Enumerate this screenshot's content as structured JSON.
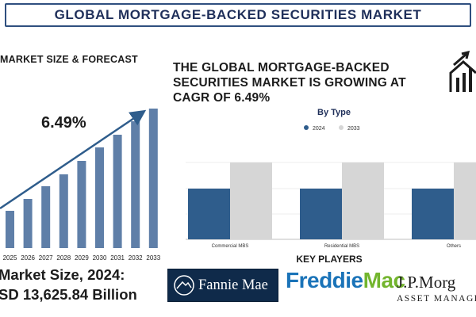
{
  "header": {
    "title": "GLOBAL MORTGAGE-BACKED SECURITIES MARKET"
  },
  "left_panel": {
    "title": "MARKET SIZE & FORECAST",
    "cagr_label": "6.49%",
    "market_size_line1": "Market Size, 2024:",
    "market_size_line2": "SD 13,625.84 Billion"
  },
  "right_panel": {
    "headline": "THE GLOBAL MORTGAGE-BACKED SECURITIES MARKET IS GROWING AT CAGR OF 6.49%",
    "chart_title": "By Type",
    "icon": "house-growth-icon"
  },
  "key_players": {
    "title": "KEY PLAYERS",
    "fannie_mae": "Fannie Mae",
    "freddie_mac_1": "Freddie",
    "freddie_mac_2": "Mac",
    "jpmorgan_1": "J.P.Morg",
    "jpmorgan_2": "ASSET MANAGE"
  },
  "colors": {
    "primary_blue": "#2f5d8c",
    "left_bar": "#5f7fa8",
    "light_gray": "#d6d6d6",
    "title_navy": "#1f2f5a",
    "freddie_blue": "#1a73b8",
    "freddie_green": "#73b52e"
  },
  "chart_data": [
    {
      "type": "bar",
      "categories": [
        "2025",
        "2026",
        "2027",
        "2028",
        "2029",
        "2030",
        "2031",
        "2032",
        "2033"
      ],
      "values": [
        47,
        62,
        78,
        93,
        110,
        127,
        143,
        160,
        176
      ],
      "ylim": [
        0,
        185
      ],
      "annotations": [
        "6.49%"
      ]
    },
    {
      "type": "bar",
      "title": "By Type",
      "categories": [
        "Commercial MBS",
        "Residential MBS",
        "Others"
      ],
      "series": [
        {
          "name": "2024",
          "values": [
            66,
            66,
            66
          ],
          "color": "#2f5d8c"
        },
        {
          "name": "2033",
          "values": [
            100,
            100,
            100
          ],
          "color": "#d6d6d6"
        }
      ],
      "ylim": [
        0,
        100
      ],
      "legend": "top-center",
      "grid": true
    }
  ]
}
